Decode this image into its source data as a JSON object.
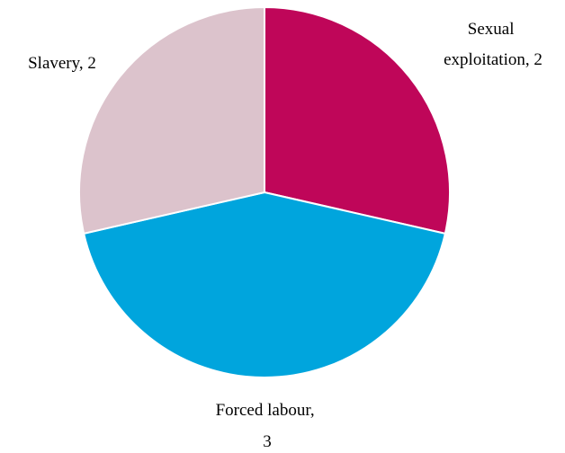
{
  "chart_data": {
    "type": "pie",
    "slices": [
      {
        "name": "Sexual exploitation",
        "value": 2,
        "label_lines": [
          "Sexual",
          "exploitation, 2"
        ],
        "color": "#bf0659"
      },
      {
        "name": "Forced labour",
        "value": 3,
        "label_lines": [
          "Forced labour,",
          "3"
        ],
        "color": "#00a5dd"
      },
      {
        "name": "Slavery",
        "value": 2,
        "label_lines": [
          "Slavery, 2"
        ],
        "color": "#dcc3cc"
      }
    ],
    "start": "12 o'clock",
    "direction": "clockwise",
    "legend": "none",
    "slice_border_color": "#ffffff"
  }
}
